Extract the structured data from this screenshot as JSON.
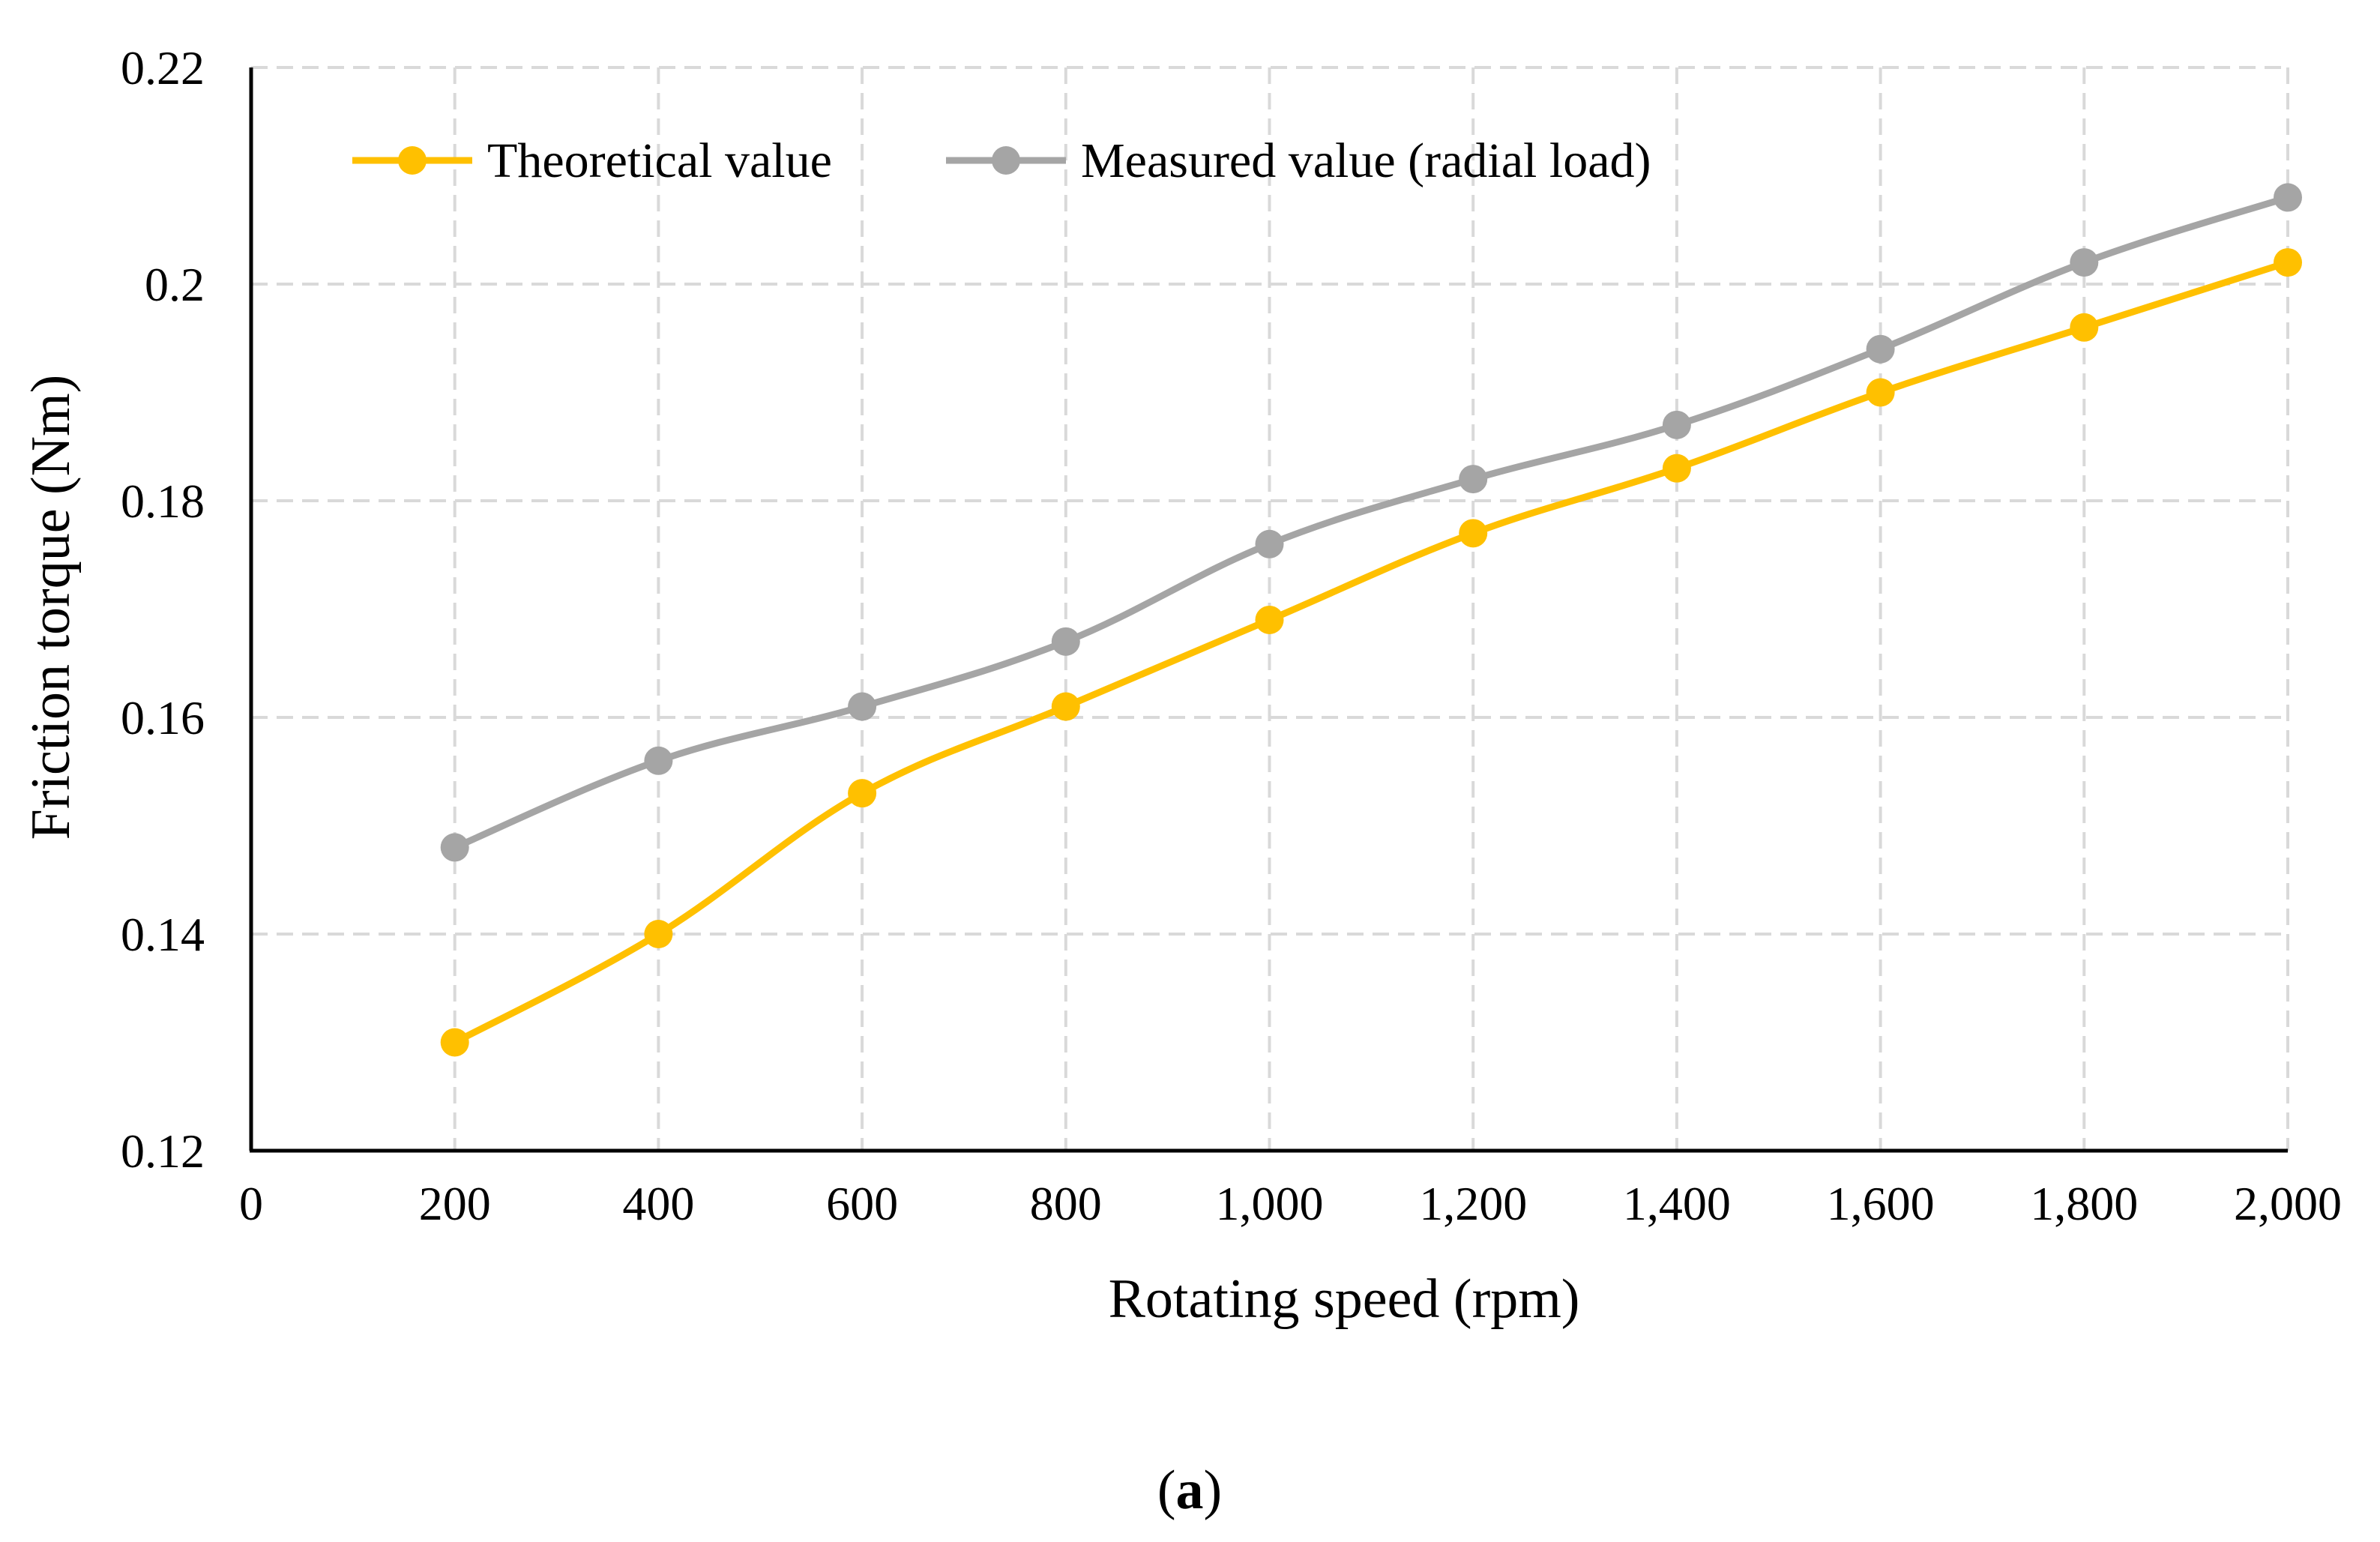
{
  "chart_data": {
    "type": "line",
    "title": "",
    "xlabel": "Rotating speed (rpm)",
    "ylabel": "Friction torque (Nm)",
    "xlim": [
      0,
      2000
    ],
    "ylim": [
      0.12,
      0.22
    ],
    "x_ticks": [
      0,
      200,
      400,
      600,
      800,
      1000,
      1200,
      1400,
      1600,
      1800,
      2000
    ],
    "x_tick_labels": [
      "0",
      "200",
      "400",
      "600",
      "800",
      "1,000",
      "1,200",
      "1,400",
      "1,600",
      "1,800",
      "2,000"
    ],
    "y_ticks": [
      0.12,
      0.14,
      0.16,
      0.18,
      0.2,
      0.22
    ],
    "y_tick_labels": [
      "0.12",
      "0.14",
      "0.16",
      "0.18",
      "0.2",
      "0.22"
    ],
    "grid": true,
    "legend_position": "top-left",
    "x": [
      200,
      400,
      600,
      800,
      1000,
      1200,
      1400,
      1600,
      1800,
      2000
    ],
    "series": [
      {
        "name": "Theoretical value",
        "color": "#FFC000",
        "values": [
          0.13,
          0.14,
          0.153,
          0.161,
          0.169,
          0.177,
          0.183,
          0.19,
          0.196,
          0.202
        ]
      },
      {
        "name": "Measured value (radial load)",
        "color": "#A5A5A5",
        "values": [
          0.148,
          0.156,
          0.161,
          0.167,
          0.176,
          0.182,
          0.187,
          0.194,
          0.202,
          0.208
        ]
      }
    ],
    "caption_letter": "a"
  }
}
